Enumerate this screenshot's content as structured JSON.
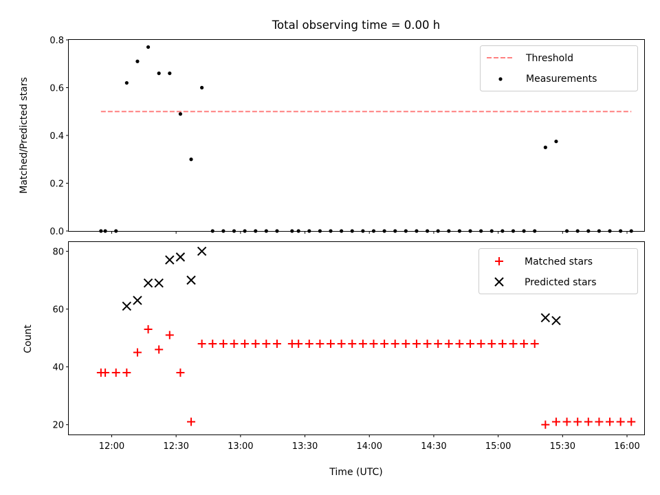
{
  "chart_data": [
    {
      "type": "scatter",
      "title": "Total observing time = 0.00 h",
      "xlabel": "",
      "ylabel": "Matched/Predicted stars",
      "ylim": [
        0,
        0.8
      ],
      "yticks": [
        "0.0",
        "0.2",
        "0.4",
        "0.6",
        "0.8"
      ],
      "xlim": [
        "11:40",
        "16:08"
      ],
      "legend": "top-right",
      "threshold": {
        "name": "Threshold",
        "value": 0.5,
        "x": [
          "11:55",
          "16:02"
        ],
        "color": "#ff8080"
      },
      "series": [
        {
          "name": "Measurements",
          "color": "#000000",
          "x": [
            "11:55",
            "11:57",
            "12:02",
            "12:07",
            "12:12",
            "12:17",
            "12:22",
            "12:27",
            "12:32",
            "12:37",
            "12:42",
            "12:47",
            "12:52",
            "12:57",
            "13:02",
            "13:07",
            "13:12",
            "13:17",
            "13:24",
            "13:27",
            "13:32",
            "13:37",
            "13:42",
            "13:47",
            "13:52",
            "13:57",
            "14:02",
            "14:07",
            "14:12",
            "14:17",
            "14:22",
            "14:27",
            "14:32",
            "14:37",
            "14:42",
            "14:47",
            "14:52",
            "14:57",
            "15:02",
            "15:07",
            "15:12",
            "15:17",
            "15:22",
            "15:27",
            "15:32",
            "15:37",
            "15:42",
            "15:47",
            "15:52",
            "15:57",
            "16:02"
          ],
          "y": [
            0,
            0,
            0,
            0.62,
            0.71,
            0.77,
            0.66,
            0.66,
            0.49,
            0.3,
            0.6,
            0,
            0,
            0,
            0,
            0,
            0,
            0,
            0,
            0,
            0,
            0,
            0,
            0,
            0,
            0,
            0,
            0,
            0,
            0,
            0,
            0,
            0,
            0,
            0,
            0,
            0,
            0,
            0,
            0,
            0,
            0,
            0.35,
            0.375,
            0,
            0,
            0,
            0,
            0,
            0,
            0
          ]
        }
      ]
    },
    {
      "type": "scatter",
      "title": "",
      "xlabel": "Time (UTC)",
      "ylabel": "Count",
      "ylim": [
        16.6,
        83.2
      ],
      "yticks": [
        "20",
        "40",
        "60",
        "80"
      ],
      "xlim": [
        "11:40",
        "16:08"
      ],
      "xticks": [
        "12:00",
        "12:30",
        "13:00",
        "13:30",
        "14:00",
        "14:30",
        "15:00",
        "15:30",
        "16:00"
      ],
      "legend": "top-right",
      "series": [
        {
          "name": "Matched stars",
          "marker": "plus",
          "color": "#ff0000",
          "x": [
            "11:55",
            "11:57",
            "12:02",
            "12:07",
            "12:12",
            "12:17",
            "12:22",
            "12:27",
            "12:32",
            "12:37",
            "12:42",
            "12:47",
            "12:52",
            "12:57",
            "13:02",
            "13:07",
            "13:12",
            "13:17",
            "13:24",
            "13:27",
            "13:32",
            "13:37",
            "13:42",
            "13:47",
            "13:52",
            "13:57",
            "14:02",
            "14:07",
            "14:12",
            "14:17",
            "14:22",
            "14:27",
            "14:32",
            "14:37",
            "14:42",
            "14:47",
            "14:52",
            "14:57",
            "15:02",
            "15:07",
            "15:12",
            "15:17",
            "15:22",
            "15:27",
            "15:32",
            "15:37",
            "15:42",
            "15:47",
            "15:52",
            "15:57",
            "16:02"
          ],
          "y": [
            38,
            38,
            38,
            38,
            45,
            53,
            46,
            51,
            38,
            21,
            48,
            48,
            48,
            48,
            48,
            48,
            48,
            48,
            48,
            48,
            48,
            48,
            48,
            48,
            48,
            48,
            48,
            48,
            48,
            48,
            48,
            48,
            48,
            48,
            48,
            48,
            48,
            48,
            48,
            48,
            48,
            48,
            20,
            21,
            21,
            21,
            21,
            21,
            21,
            21,
            21
          ]
        },
        {
          "name": "Predicted stars",
          "marker": "x",
          "color": "#000000",
          "x": [
            "12:07",
            "12:12",
            "12:17",
            "12:22",
            "12:27",
            "12:32",
            "12:37",
            "12:42",
            "15:22",
            "15:27"
          ],
          "y": [
            61,
            63,
            69,
            69,
            77,
            78,
            70,
            80,
            57,
            56
          ]
        }
      ]
    }
  ]
}
